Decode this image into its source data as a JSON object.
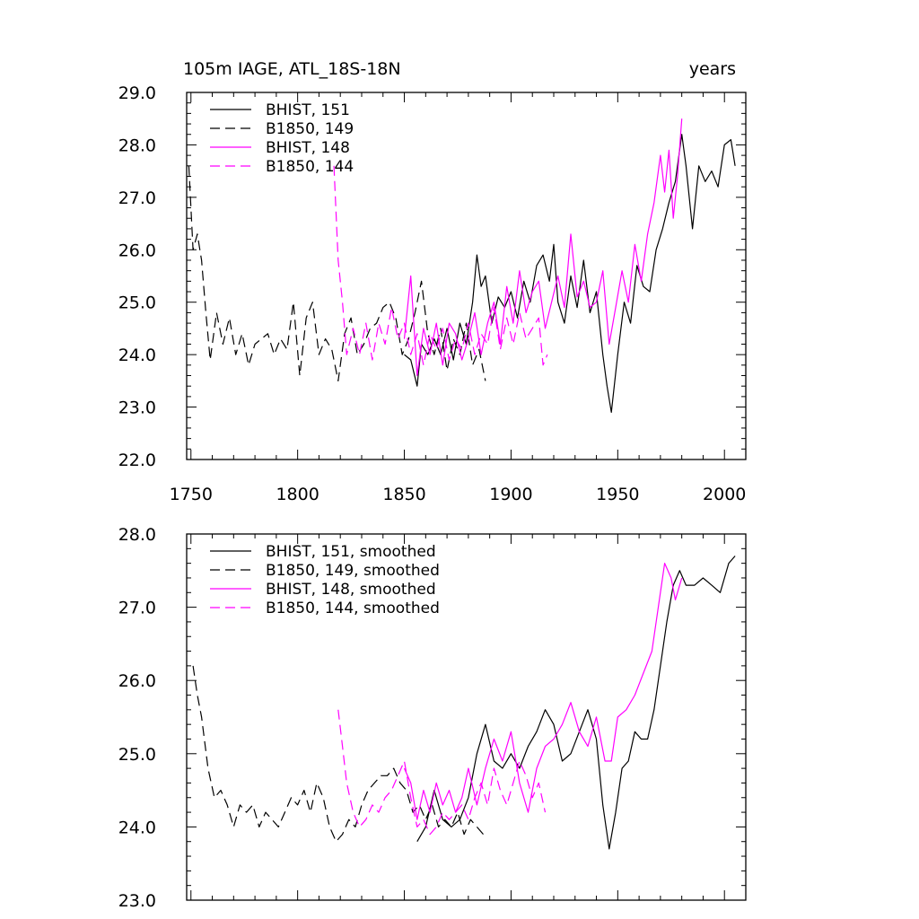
{
  "figure": {
    "title_left": "105m IAGE, ATL_18S-18N",
    "title_right": "years"
  },
  "chart_data": [
    {
      "type": "line",
      "xlim": [
        1748,
        2010
      ],
      "ylim": [
        22.0,
        29.0
      ],
      "xticks": [
        1750,
        1800,
        1850,
        1900,
        1950,
        2000
      ],
      "yticks": [
        22.0,
        23.0,
        24.0,
        25.0,
        26.0,
        27.0,
        28.0,
        29.0
      ],
      "show_xtick_labels": true,
      "legend_position": "top-left",
      "grid": false,
      "series": [
        {
          "name": "BHIST, 151",
          "color": "#000000",
          "dash": "solid",
          "x": [
            1850,
            1853,
            1856,
            1858,
            1861,
            1864,
            1867,
            1870,
            1873,
            1876,
            1879,
            1882,
            1884,
            1886,
            1888,
            1891,
            1894,
            1897,
            1900,
            1903,
            1906,
            1909,
            1912,
            1915,
            1918,
            1920,
            1922,
            1925,
            1928,
            1931,
            1934,
            1937,
            1940,
            1943,
            1945,
            1947,
            1950,
            1953,
            1956,
            1959,
            1962,
            1965,
            1968,
            1971,
            1974,
            1977,
            1980,
            1982,
            1985,
            1988,
            1991,
            1994,
            1997,
            2000,
            2003,
            2005
          ],
          "y": [
            24.0,
            23.9,
            23.4,
            24.2,
            24.0,
            24.3,
            24.0,
            24.5,
            23.9,
            24.6,
            24.2,
            25.0,
            25.9,
            25.3,
            25.5,
            24.6,
            25.1,
            24.9,
            25.2,
            24.7,
            25.4,
            25.0,
            25.7,
            25.9,
            25.4,
            26.1,
            25.0,
            24.6,
            25.5,
            24.9,
            25.8,
            24.8,
            25.2,
            24.0,
            23.4,
            22.9,
            24.0,
            25.0,
            24.6,
            25.7,
            25.3,
            25.2,
            26.0,
            26.4,
            26.9,
            27.3,
            28.2,
            27.6,
            26.4,
            27.6,
            27.3,
            27.5,
            27.2,
            28.0,
            28.1,
            27.6
          ]
        },
        {
          "name": "B1850, 149",
          "color": "#000000",
          "dash": "dashed",
          "x": [
            1749,
            1751,
            1753,
            1755,
            1757,
            1759,
            1762,
            1765,
            1768,
            1771,
            1774,
            1777,
            1780,
            1783,
            1786,
            1789,
            1792,
            1795,
            1798,
            1801,
            1804,
            1807,
            1810,
            1813,
            1816,
            1819,
            1822,
            1825,
            1828,
            1831,
            1834,
            1837,
            1840,
            1843,
            1846,
            1849,
            1852,
            1855,
            1858,
            1861,
            1864,
            1867,
            1870,
            1873,
            1876,
            1879,
            1882,
            1885,
            1888
          ],
          "y": [
            27.6,
            26.0,
            26.3,
            25.8,
            24.8,
            23.9,
            24.8,
            24.2,
            24.7,
            24.0,
            24.4,
            23.8,
            24.2,
            24.3,
            24.4,
            24.0,
            24.3,
            24.1,
            25.0,
            23.6,
            24.7,
            25.0,
            24.0,
            24.3,
            24.1,
            23.5,
            24.4,
            24.7,
            24.0,
            24.2,
            24.5,
            24.6,
            24.9,
            25.0,
            24.7,
            24.0,
            24.3,
            24.8,
            25.4,
            24.4,
            24.0,
            24.5,
            23.7,
            24.3,
            24.0,
            24.6,
            23.8,
            24.1,
            23.5
          ]
        },
        {
          "name": "BHIST, 148",
          "color": "#ff00ff",
          "dash": "solid",
          "x": [
            1850,
            1853,
            1856,
            1859,
            1862,
            1865,
            1868,
            1871,
            1874,
            1877,
            1880,
            1883,
            1886,
            1889,
            1892,
            1895,
            1898,
            1901,
            1904,
            1907,
            1910,
            1913,
            1916,
            1919,
            1922,
            1925,
            1928,
            1931,
            1934,
            1937,
            1940,
            1943,
            1946,
            1949,
            1952,
            1955,
            1958,
            1961,
            1964,
            1967,
            1970,
            1972,
            1974,
            1976,
            1978,
            1980
          ],
          "y": [
            24.3,
            25.5,
            23.6,
            24.5,
            24.0,
            24.6,
            23.8,
            24.6,
            24.4,
            23.9,
            24.3,
            24.8,
            24.0,
            24.6,
            25.0,
            24.2,
            25.3,
            24.6,
            25.6,
            24.8,
            25.2,
            25.4,
            24.5,
            25.0,
            25.5,
            24.9,
            26.3,
            25.1,
            25.4,
            24.9,
            25.0,
            25.6,
            24.2,
            24.9,
            25.6,
            25.0,
            26.1,
            25.4,
            26.3,
            26.9,
            27.8,
            27.1,
            27.9,
            26.6,
            27.4,
            28.5
          ]
        },
        {
          "name": "B1850, 144",
          "color": "#ff00ff",
          "dash": "dashed",
          "x": [
            1817,
            1819,
            1821,
            1823,
            1826,
            1829,
            1832,
            1835,
            1838,
            1841,
            1844,
            1847,
            1850,
            1853,
            1856,
            1859,
            1862,
            1865,
            1868,
            1871,
            1874,
            1877,
            1880,
            1883,
            1886,
            1889,
            1892,
            1895,
            1898,
            1901,
            1904,
            1907,
            1910,
            1913,
            1915,
            1917
          ],
          "y": [
            27.6,
            25.8,
            25.0,
            24.0,
            24.5,
            24.0,
            24.6,
            23.9,
            24.6,
            24.2,
            24.9,
            24.3,
            24.6,
            24.0,
            24.4,
            23.8,
            24.4,
            24.1,
            24.5,
            23.9,
            24.3,
            24.1,
            24.6,
            24.0,
            24.4,
            24.2,
            24.9,
            24.1,
            24.7,
            24.2,
            24.8,
            24.3,
            24.5,
            24.7,
            23.8,
            24.0
          ]
        }
      ]
    },
    {
      "type": "line",
      "xlim": [
        1748,
        2010
      ],
      "ylim": [
        23.0,
        28.0
      ],
      "xticks": [
        1750,
        1800,
        1850,
        1900,
        1950,
        2000
      ],
      "yticks": [
        23.0,
        24.0,
        25.0,
        26.0,
        27.0,
        28.0
      ],
      "show_xtick_labels": false,
      "legend_position": "top-left",
      "grid": false,
      "series": [
        {
          "name": "BHIST, 151, smoothed",
          "color": "#000000",
          "dash": "solid",
          "x": [
            1856,
            1860,
            1864,
            1868,
            1872,
            1876,
            1880,
            1884,
            1888,
            1892,
            1896,
            1900,
            1904,
            1908,
            1912,
            1916,
            1920,
            1924,
            1928,
            1932,
            1936,
            1940,
            1943,
            1946,
            1949,
            1952,
            1955,
            1958,
            1961,
            1964,
            1967,
            1970,
            1973,
            1976,
            1979,
            1982,
            1986,
            1990,
            1994,
            1998,
            2002,
            2005
          ],
          "y": [
            23.8,
            24.0,
            24.5,
            24.1,
            24.0,
            24.1,
            24.4,
            25.0,
            25.4,
            24.9,
            24.8,
            25.0,
            24.8,
            25.1,
            25.3,
            25.6,
            25.4,
            24.9,
            25.0,
            25.3,
            25.6,
            25.2,
            24.3,
            23.7,
            24.2,
            24.8,
            24.9,
            25.3,
            25.2,
            25.2,
            25.6,
            26.2,
            26.8,
            27.3,
            27.5,
            27.3,
            27.3,
            27.4,
            27.3,
            27.2,
            27.6,
            27.7
          ]
        },
        {
          "name": "B1850, 149, smoothed",
          "color": "#000000",
          "dash": "dashed",
          "x": [
            1751,
            1753,
            1755,
            1758,
            1761,
            1764,
            1767,
            1770,
            1773,
            1776,
            1779,
            1782,
            1785,
            1788,
            1791,
            1794,
            1797,
            1800,
            1803,
            1806,
            1809,
            1812,
            1815,
            1818,
            1821,
            1824,
            1827,
            1830,
            1833,
            1836,
            1839,
            1842,
            1845,
            1848,
            1851,
            1854,
            1857,
            1860,
            1863,
            1866,
            1869,
            1872,
            1875,
            1878,
            1881,
            1884,
            1887
          ],
          "y": [
            26.2,
            25.8,
            25.5,
            24.8,
            24.4,
            24.5,
            24.3,
            24.0,
            24.3,
            24.2,
            24.3,
            24.0,
            24.2,
            24.1,
            24.0,
            24.2,
            24.4,
            24.3,
            24.5,
            24.2,
            24.6,
            24.4,
            24.0,
            23.8,
            23.9,
            24.1,
            24.0,
            24.3,
            24.5,
            24.6,
            24.7,
            24.7,
            24.8,
            24.6,
            24.5,
            24.2,
            24.3,
            24.1,
            24.3,
            24.0,
            24.1,
            24.0,
            24.2,
            23.9,
            24.1,
            24.0,
            23.9
          ]
        },
        {
          "name": "BHIST, 148, smoothed",
          "color": "#ff00ff",
          "dash": "solid",
          "x": [
            1850,
            1853,
            1856,
            1859,
            1862,
            1865,
            1868,
            1871,
            1874,
            1877,
            1880,
            1884,
            1888,
            1892,
            1896,
            1900,
            1904,
            1908,
            1912,
            1916,
            1920,
            1924,
            1928,
            1932,
            1936,
            1940,
            1944,
            1947,
            1950,
            1954,
            1958,
            1962,
            1966,
            1969,
            1972,
            1975,
            1977,
            1980
          ],
          "y": [
            24.8,
            24.6,
            24.1,
            24.5,
            24.2,
            24.6,
            24.3,
            24.5,
            24.2,
            24.4,
            24.8,
            24.3,
            24.8,
            25.2,
            24.9,
            25.3,
            24.6,
            24.2,
            24.8,
            25.1,
            25.2,
            25.4,
            25.7,
            25.3,
            25.1,
            25.5,
            24.9,
            24.9,
            25.5,
            25.6,
            25.8,
            26.1,
            26.4,
            27.0,
            27.6,
            27.4,
            27.1,
            27.4
          ]
        },
        {
          "name": "B1850, 144, smoothed",
          "color": "#ff00ff",
          "dash": "dashed",
          "x": [
            1819,
            1821,
            1823,
            1826,
            1829,
            1832,
            1835,
            1838,
            1841,
            1844,
            1847,
            1850,
            1853,
            1856,
            1859,
            1862,
            1865,
            1868,
            1871,
            1874,
            1877,
            1880,
            1883,
            1886,
            1889,
            1892,
            1895,
            1898,
            1901,
            1904,
            1907,
            1910,
            1913,
            1916
          ],
          "y": [
            25.6,
            25.1,
            24.6,
            24.2,
            24.0,
            24.1,
            24.3,
            24.2,
            24.4,
            24.5,
            24.7,
            24.9,
            24.4,
            24.0,
            24.1,
            23.9,
            24.0,
            24.2,
            24.1,
            24.2,
            24.3,
            24.1,
            24.4,
            24.6,
            24.3,
            24.8,
            24.5,
            24.3,
            24.6,
            24.9,
            24.7,
            24.4,
            24.6,
            24.2
          ]
        }
      ]
    }
  ]
}
